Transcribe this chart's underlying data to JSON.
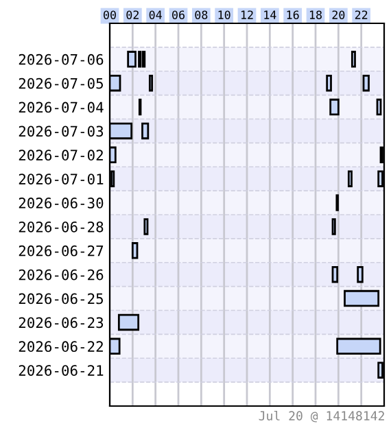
{
  "chart_data": {
    "type": "bar",
    "orientation": "horizontal",
    "grid": true,
    "legend": false,
    "categories": [
      "2026-07-06",
      "2026-07-05",
      "2026-07-04",
      "2026-07-03",
      "2026-07-02",
      "2026-07-01",
      "2026-06-30",
      "2026-06-28",
      "2026-06-27",
      "2026-06-26",
      "2026-06-25",
      "2026-06-23",
      "2026-06-22",
      "2026-06-21"
    ],
    "xlim": [
      0,
      24
    ],
    "xticks": [
      {
        "value": 0,
        "label": "00"
      },
      {
        "value": 2,
        "label": "02"
      },
      {
        "value": 4,
        "label": "04"
      },
      {
        "value": 6,
        "label": "06"
      },
      {
        "value": 8,
        "label": "08"
      },
      10,
      12,
      14,
      16,
      18,
      20,
      22
    ],
    "series": [
      {
        "color": "#c6d6f8",
        "base": [
          1.6,
          0,
          2.6,
          0,
          0,
          0.15,
          19.85,
          3.05,
          2.0,
          19.5,
          20.55,
          0.8,
          0,
          23.5
        ],
        "values": [
          0.65,
          0.9,
          0.1,
          1.9,
          0.5,
          0.2,
          0.1,
          0.25,
          0.4,
          0.4,
          2.95,
          1.7,
          0.85,
          0.35
        ]
      },
      {
        "color": "#c6d6f8",
        "base": [
          2.55,
          3.5,
          19.3,
          2.85,
          23.7,
          20.9,
          null,
          19.5,
          null,
          21.7,
          null,
          null,
          19.9,
          null
        ],
        "values": [
          0.15,
          0.2,
          0.7,
          0.5,
          0.15,
          0.25,
          null,
          0.2,
          null,
          0.4,
          null,
          null,
          3.75,
          null
        ]
      },
      {
        "color": "#c6d6f8",
        "base": [
          2.9,
          19.0,
          23.4,
          null,
          null,
          23.5,
          null,
          null,
          null,
          null,
          null,
          null,
          null,
          null
        ],
        "values": [
          0.15,
          0.35,
          0.3,
          null,
          null,
          0.35,
          null,
          null,
          null,
          null,
          null,
          null,
          null,
          null
        ]
      },
      {
        "color": "#c6d6f8",
        "base": [
          21.2,
          22.2,
          null,
          null,
          null,
          null,
          null,
          null,
          null,
          null,
          null,
          null,
          null,
          null
        ],
        "values": [
          0.25,
          0.45,
          null,
          null,
          null,
          null,
          null,
          null,
          null,
          null,
          null,
          null,
          null,
          null
        ]
      }
    ],
    "annotations": [
      "Jul 20 @ 14148142"
    ]
  }
}
